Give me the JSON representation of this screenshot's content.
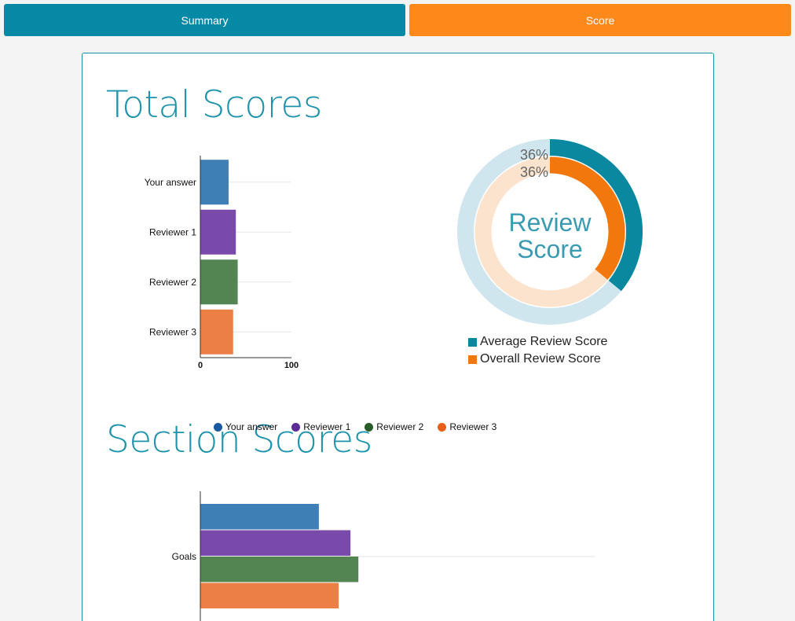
{
  "tabs": {
    "summary": "Summary",
    "score": "Score"
  },
  "titles": {
    "total": "Total Scores",
    "section": "Section Scores"
  },
  "colors": {
    "your_answer": "#3e7fb5",
    "reviewer_1": "#7a4aaa",
    "reviewer_2": "#538553",
    "reviewer_3": "#ec7f45",
    "average_ring": "#0a88a0",
    "overall_ring": "#f2780d"
  },
  "chart_data": [
    {
      "type": "bar",
      "orientation": "horizontal",
      "title": "Total Scores",
      "categories": [
        "Your answer",
        "Reviewer 1",
        "Reviewer 2",
        "Reviewer 3"
      ],
      "values": [
        31,
        39,
        41,
        36
      ],
      "xlim": [
        0,
        100
      ],
      "xticks": [
        "0",
        "100"
      ]
    },
    {
      "type": "pie",
      "variant": "double-donut",
      "center_label": [
        "Review",
        "Score"
      ],
      "series": [
        {
          "name": "Average Review Score",
          "value": 36,
          "label": "36%"
        },
        {
          "name": "Overall Review Score",
          "value": 36,
          "label": "36%"
        }
      ],
      "legend": "bottom"
    },
    {
      "type": "bar",
      "orientation": "horizontal",
      "title": "Section Scores",
      "categories": [
        "Goals"
      ],
      "series": [
        {
          "name": "Your answer",
          "values": [
            30
          ]
        },
        {
          "name": "Reviewer 1",
          "values": [
            38
          ]
        },
        {
          "name": "Reviewer 2",
          "values": [
            40
          ]
        },
        {
          "name": "Reviewer 3",
          "values": [
            35
          ]
        }
      ],
      "xlim": [
        0,
        100
      ],
      "legend": "top"
    }
  ]
}
